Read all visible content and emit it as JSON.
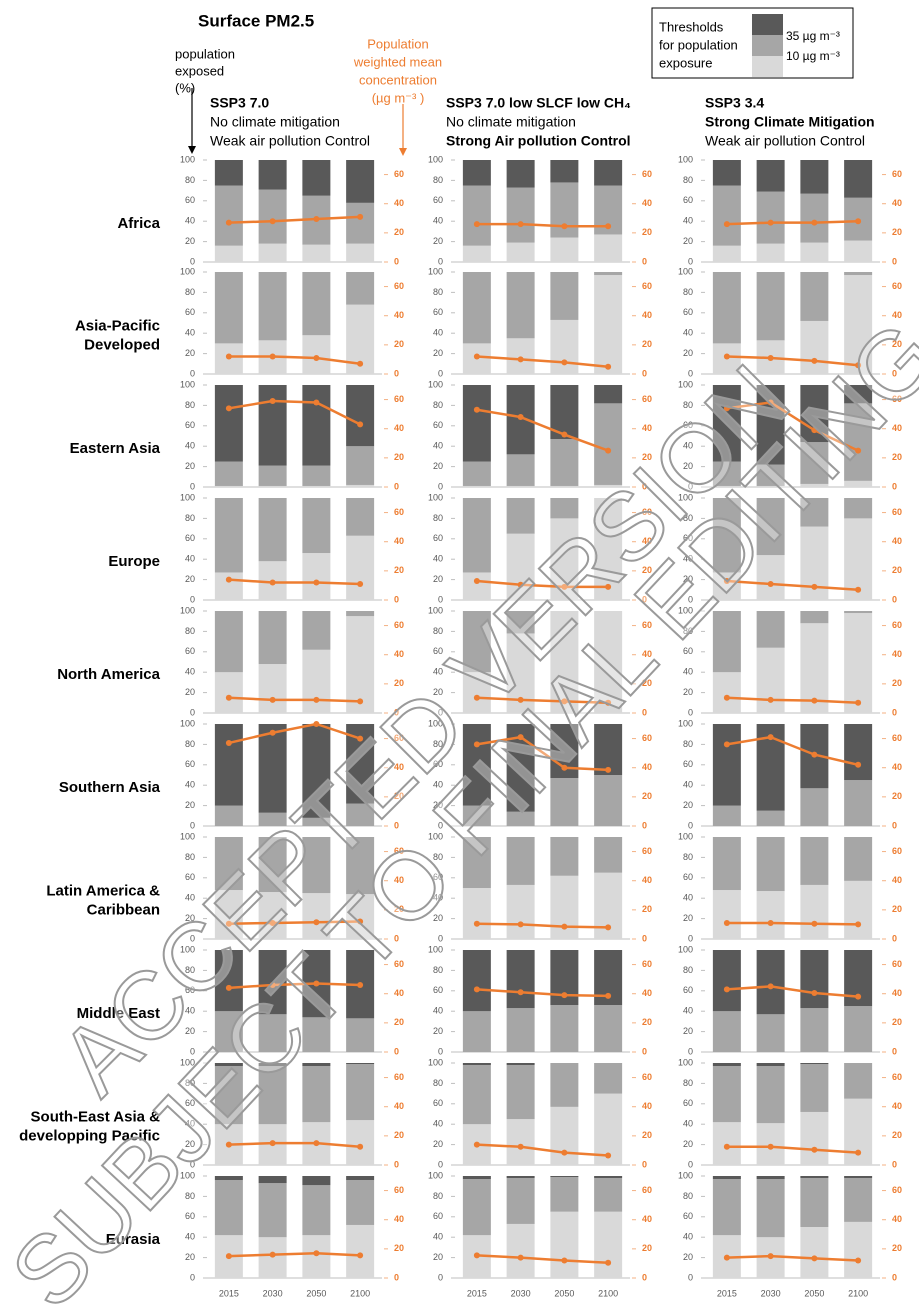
{
  "title": "Surface PM2.5",
  "left_axis_label": [
    "population",
    "exposed",
    "(%)"
  ],
  "right_axis_label": [
    "Population",
    "weighted mean",
    "concentration",
    "(µg m⁻³ )"
  ],
  "legend": {
    "title": [
      "Thresholds",
      "for population",
      "exposure"
    ],
    "items": [
      "35 µg m⁻³",
      "10 µg m⁻³"
    ]
  },
  "watermark": [
    "ACCEPTED VERSION",
    "SUBJECT TO FINAL EDITING"
  ],
  "scenarios": [
    [
      {
        "text": "SSP3 7.0",
        "bold": true
      },
      {
        "text": "No climate mitigation",
        "bold": false
      },
      {
        "text": "Weak air pollution Control",
        "bold": false
      }
    ],
    [
      {
        "text": "SSP3 7.0 low SLCF low CH₄",
        "bold": true
      },
      {
        "text": "No climate mitigation",
        "bold": false
      },
      {
        "text": "Strong Air pollution  Control",
        "bold": true
      }
    ],
    [
      {
        "text": "SSP3 3.4",
        "bold": true
      },
      {
        "text": "Strong Climate Mitigation",
        "bold": true
      },
      {
        "text": "Weak air pollution Control",
        "bold": false
      }
    ]
  ],
  "regions": [
    [
      "Africa"
    ],
    [
      "Asia-Pacific",
      "Developed"
    ],
    [
      "Eastern Asia"
    ],
    [
      "Europe"
    ],
    [
      "North America"
    ],
    [
      "Southern Asia"
    ],
    [
      "Latin America &",
      "Caribbean"
    ],
    [
      "Middle East"
    ],
    [
      "South-East Asia &",
      "developping Pacific"
    ],
    [
      "Eurasia"
    ]
  ],
  "x_labels": [
    "2015",
    "2030",
    "2050",
    "2100"
  ],
  "axes": {
    "ylim": [
      0,
      100
    ],
    "yticks": [
      0,
      20,
      40,
      60,
      80,
      100
    ],
    "y2lim": [
      0,
      70
    ],
    "y2ticks": [
      0,
      20,
      40,
      60
    ]
  },
  "colors": [
    "#d9d9d9",
    "#a6a6a6",
    "#595959",
    "#ed7d31"
  ],
  "chart_data": [
    {
      "type": "bar",
      "series": [
        {
          "values": [
            16,
            18,
            17,
            18
          ]
        },
        {
          "values": [
            59,
            53,
            48,
            40
          ]
        },
        {
          "values": [
            25,
            29,
            35,
            42
          ]
        },
        {
          "type": "line",
          "axis": "y2",
          "values": [
            27,
            28,
            29.5,
            31
          ]
        }
      ]
    },
    {
      "type": "bar",
      "series": [
        {
          "values": [
            16,
            19,
            24,
            27
          ]
        },
        {
          "values": [
            59,
            54,
            54,
            48
          ]
        },
        {
          "values": [
            25,
            27,
            22,
            25
          ]
        },
        {
          "type": "line",
          "axis": "y2",
          "values": [
            26,
            26,
            24.5,
            24.5
          ]
        }
      ]
    },
    {
      "type": "bar",
      "series": [
        {
          "values": [
            16,
            18,
            19,
            21
          ]
        },
        {
          "values": [
            59,
            51,
            48,
            42
          ]
        },
        {
          "values": [
            25,
            31,
            33,
            37
          ]
        },
        {
          "type": "line",
          "axis": "y2",
          "values": [
            26,
            27,
            27,
            28
          ]
        }
      ]
    },
    {
      "type": "bar",
      "series": [
        {
          "values": [
            30,
            33,
            38,
            68
          ]
        },
        {
          "values": [
            70,
            67,
            62,
            32
          ]
        },
        {
          "values": [
            0,
            0,
            0,
            0
          ]
        },
        {
          "type": "line",
          "axis": "y2",
          "values": [
            12,
            12,
            11,
            7
          ]
        }
      ]
    },
    {
      "type": "bar",
      "series": [
        {
          "values": [
            30,
            35,
            53,
            97
          ]
        },
        {
          "values": [
            70,
            65,
            47,
            3
          ]
        },
        {
          "values": [
            0,
            0,
            0,
            0
          ]
        },
        {
          "type": "line",
          "axis": "y2",
          "values": [
            12,
            10,
            8,
            5
          ]
        }
      ]
    },
    {
      "type": "bar",
      "series": [
        {
          "values": [
            30,
            33,
            52,
            97
          ]
        },
        {
          "values": [
            70,
            67,
            48,
            3
          ]
        },
        {
          "values": [
            0,
            0,
            0,
            0
          ]
        },
        {
          "type": "line",
          "axis": "y2",
          "values": [
            12,
            11,
            9,
            6
          ]
        }
      ]
    },
    {
      "type": "bar",
      "series": [
        {
          "values": [
            1,
            1,
            1,
            2
          ]
        },
        {
          "values": [
            24,
            20,
            20,
            38
          ]
        },
        {
          "values": [
            75,
            79,
            79,
            60
          ]
        },
        {
          "type": "line",
          "axis": "y2",
          "values": [
            54,
            59,
            58,
            43
          ]
        }
      ]
    },
    {
      "type": "bar",
      "series": [
        {
          "values": [
            1,
            1,
            1,
            2
          ]
        },
        {
          "values": [
            24,
            31,
            46,
            80
          ]
        },
        {
          "values": [
            75,
            68,
            53,
            18
          ]
        },
        {
          "type": "line",
          "axis": "y2",
          "values": [
            53,
            48,
            36,
            25
          ]
        }
      ]
    },
    {
      "type": "bar",
      "series": [
        {
          "values": [
            1,
            1,
            3,
            6
          ]
        },
        {
          "values": [
            24,
            21,
            41,
            76
          ]
        },
        {
          "values": [
            75,
            78,
            56,
            18
          ]
        },
        {
          "type": "line",
          "axis": "y2",
          "values": [
            54,
            58,
            39,
            25
          ]
        }
      ]
    },
    {
      "type": "bar",
      "series": [
        {
          "values": [
            27,
            38,
            46,
            63
          ]
        },
        {
          "values": [
            73,
            62,
            54,
            37
          ]
        },
        {
          "values": [
            0,
            0,
            0,
            0
          ]
        },
        {
          "type": "line",
          "axis": "y2",
          "values": [
            14,
            12,
            12,
            11
          ]
        }
      ]
    },
    {
      "type": "bar",
      "series": [
        {
          "values": [
            27,
            65,
            80,
            100
          ]
        },
        {
          "values": [
            73,
            35,
            20,
            0
          ]
        },
        {
          "values": [
            0,
            0,
            0,
            0
          ]
        },
        {
          "type": "line",
          "axis": "y2",
          "values": [
            13,
            10.5,
            9,
            9
          ]
        }
      ]
    },
    {
      "type": "bar",
      "series": [
        {
          "values": [
            27,
            44,
            72,
            80
          ]
        },
        {
          "values": [
            73,
            56,
            28,
            20
          ]
        },
        {
          "values": [
            0,
            0,
            0,
            0
          ]
        },
        {
          "type": "line",
          "axis": "y2",
          "values": [
            13,
            11,
            9,
            7
          ]
        }
      ]
    },
    {
      "type": "bar",
      "series": [
        {
          "values": [
            40,
            48,
            62,
            95
          ]
        },
        {
          "values": [
            60,
            52,
            38,
            5
          ]
        },
        {
          "values": [
            0,
            0,
            0,
            0
          ]
        },
        {
          "type": "line",
          "axis": "y2",
          "values": [
            10.5,
            9,
            9,
            8
          ]
        }
      ]
    },
    {
      "type": "bar",
      "series": [
        {
          "values": [
            40,
            78,
            100,
            100
          ]
        },
        {
          "values": [
            60,
            22,
            0,
            0
          ]
        },
        {
          "values": [
            0,
            0,
            0,
            0
          ]
        },
        {
          "type": "line",
          "axis": "y2",
          "values": [
            10.5,
            9,
            8,
            7
          ]
        }
      ]
    },
    {
      "type": "bar",
      "series": [
        {
          "values": [
            40,
            64,
            88,
            98
          ]
        },
        {
          "values": [
            60,
            36,
            12,
            2
          ]
        },
        {
          "values": [
            0,
            0,
            0,
            0
          ]
        },
        {
          "type": "line",
          "axis": "y2",
          "values": [
            10.5,
            9,
            8.5,
            7
          ]
        }
      ]
    },
    {
      "type": "bar",
      "series": [
        {
          "values": [
            0,
            0,
            0,
            0
          ]
        },
        {
          "values": [
            20,
            13,
            8,
            22
          ]
        },
        {
          "values": [
            80,
            87,
            92,
            78
          ]
        },
        {
          "type": "line",
          "axis": "y2",
          "values": [
            57,
            64,
            70,
            60
          ]
        }
      ]
    },
    {
      "type": "bar",
      "series": [
        {
          "values": [
            0,
            0,
            0,
            0
          ]
        },
        {
          "values": [
            20,
            14,
            47,
            50
          ]
        },
        {
          "values": [
            80,
            86,
            53,
            50
          ]
        },
        {
          "type": "line",
          "axis": "y2",
          "values": [
            56,
            61,
            40,
            38.5
          ]
        }
      ]
    },
    {
      "type": "bar",
      "series": [
        {
          "values": [
            0,
            0,
            0,
            0
          ]
        },
        {
          "values": [
            20,
            15,
            37,
            45
          ]
        },
        {
          "values": [
            80,
            85,
            63,
            55
          ]
        },
        {
          "type": "line",
          "axis": "y2",
          "values": [
            56,
            61,
            49,
            42
          ]
        }
      ]
    },
    {
      "type": "bar",
      "series": [
        {
          "values": [
            48,
            46,
            45,
            44
          ]
        },
        {
          "values": [
            52,
            54,
            55,
            56
          ]
        },
        {
          "values": [
            0,
            0,
            0,
            0
          ]
        },
        {
          "type": "line",
          "axis": "y2",
          "values": [
            10.5,
            11,
            11.5,
            12
          ]
        }
      ]
    },
    {
      "type": "bar",
      "series": [
        {
          "values": [
            50,
            53,
            62,
            65
          ]
        },
        {
          "values": [
            50,
            47,
            38,
            35
          ]
        },
        {
          "values": [
            0,
            0,
            0,
            0
          ]
        },
        {
          "type": "line",
          "axis": "y2",
          "values": [
            10.5,
            10,
            8.5,
            8
          ]
        }
      ]
    },
    {
      "type": "bar",
      "series": [
        {
          "values": [
            48,
            47,
            53,
            57
          ]
        },
        {
          "values": [
            52,
            53,
            47,
            43
          ]
        },
        {
          "values": [
            0,
            0,
            0,
            0
          ]
        },
        {
          "type": "line",
          "axis": "y2",
          "values": [
            11,
            11,
            10.5,
            10
          ]
        }
      ]
    },
    {
      "type": "bar",
      "series": [
        {
          "values": [
            0,
            0,
            0,
            0
          ]
        },
        {
          "values": [
            40,
            37,
            34,
            33
          ]
        },
        {
          "values": [
            60,
            63,
            66,
            67
          ]
        },
        {
          "type": "line",
          "axis": "y2",
          "values": [
            44,
            46,
            47,
            46
          ]
        }
      ]
    },
    {
      "type": "bar",
      "series": [
        {
          "values": [
            0,
            0,
            0,
            0
          ]
        },
        {
          "values": [
            40,
            43,
            46,
            46
          ]
        },
        {
          "values": [
            60,
            57,
            54,
            54
          ]
        },
        {
          "type": "line",
          "axis": "y2",
          "values": [
            43,
            41,
            39,
            38.5
          ]
        }
      ]
    },
    {
      "type": "bar",
      "series": [
        {
          "values": [
            0,
            0,
            0,
            0
          ]
        },
        {
          "values": [
            40,
            37,
            43,
            45
          ]
        },
        {
          "values": [
            60,
            63,
            57,
            55
          ]
        },
        {
          "type": "line",
          "axis": "y2",
          "values": [
            43,
            45,
            40.5,
            38
          ]
        }
      ]
    },
    {
      "type": "bar",
      "series": [
        {
          "values": [
            40,
            40,
            42,
            44
          ]
        },
        {
          "values": [
            57,
            57,
            55,
            55
          ]
        },
        {
          "values": [
            3,
            3,
            3,
            1
          ]
        },
        {
          "type": "line",
          "axis": "y2",
          "values": [
            14,
            15,
            15,
            12.5
          ]
        }
      ]
    },
    {
      "type": "bar",
      "series": [
        {
          "values": [
            40,
            45,
            57,
            70
          ]
        },
        {
          "values": [
            58,
            53,
            43,
            30
          ]
        },
        {
          "values": [
            2,
            2,
            0,
            0
          ]
        },
        {
          "type": "line",
          "axis": "y2",
          "values": [
            14,
            12.5,
            8.5,
            6.5
          ]
        }
      ]
    },
    {
      "type": "bar",
      "series": [
        {
          "values": [
            42,
            41,
            52,
            65
          ]
        },
        {
          "values": [
            55,
            56,
            47,
            35
          ]
        },
        {
          "values": [
            3,
            3,
            1,
            0
          ]
        },
        {
          "type": "line",
          "axis": "y2",
          "values": [
            12.5,
            12.5,
            10.5,
            8.5
          ]
        }
      ]
    },
    {
      "type": "bar",
      "series": [
        {
          "values": [
            42,
            40,
            42,
            52
          ]
        },
        {
          "values": [
            54,
            53,
            49,
            44
          ]
        },
        {
          "values": [
            4,
            7,
            9,
            4
          ]
        },
        {
          "type": "line",
          "axis": "y2",
          "values": [
            15,
            16,
            17,
            15.5
          ]
        }
      ]
    },
    {
      "type": "bar",
      "series": [
        {
          "values": [
            42,
            53,
            65,
            65
          ]
        },
        {
          "values": [
            55,
            45,
            34,
            33
          ]
        },
        {
          "values": [
            3,
            2,
            1,
            2
          ]
        },
        {
          "type": "line",
          "axis": "y2",
          "values": [
            15.5,
            14,
            12,
            10.5
          ]
        }
      ]
    },
    {
      "type": "bar",
      "series": [
        {
          "values": [
            42,
            40,
            50,
            55
          ]
        },
        {
          "values": [
            55,
            57,
            48,
            43
          ]
        },
        {
          "values": [
            3,
            3,
            2,
            2
          ]
        },
        {
          "type": "line",
          "axis": "y2",
          "values": [
            14,
            15,
            13.5,
            12
          ]
        }
      ]
    }
  ]
}
